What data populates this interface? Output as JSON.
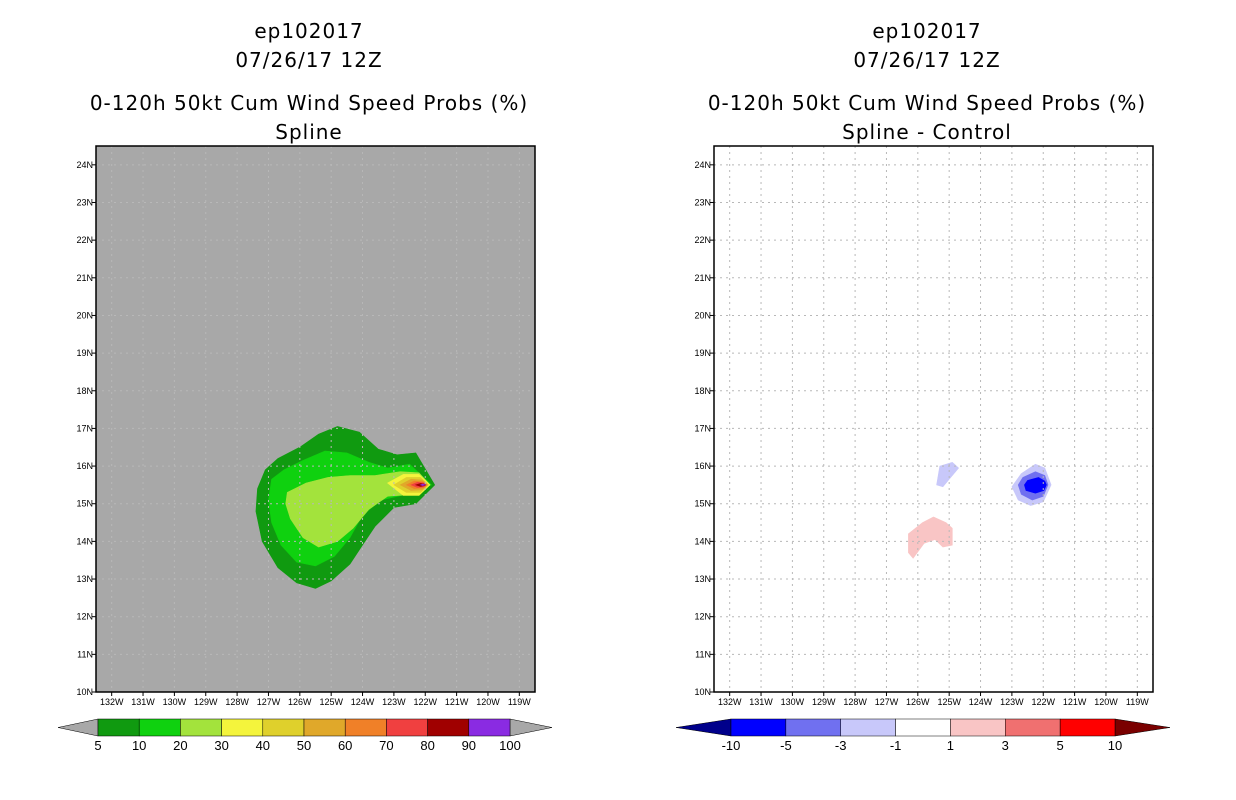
{
  "chart_data": [
    {
      "type": "heatmap",
      "storm_id": "ep102017",
      "date": "07/26/17 12Z",
      "title": "0-120h 50kt Cum Wind Speed Probs (%)",
      "subtitle": "Spline",
      "xlabel": "",
      "ylabel": "",
      "x_ticks": [
        "132W",
        "131W",
        "130W",
        "129W",
        "128W",
        "127W",
        "126W",
        "125W",
        "124W",
        "123W",
        "122W",
        "121W",
        "120W",
        "119W"
      ],
      "y_ticks": [
        "10N",
        "11N",
        "12N",
        "13N",
        "14N",
        "15N",
        "16N",
        "17N",
        "18N",
        "19N",
        "20N",
        "21N",
        "22N",
        "23N",
        "24N"
      ],
      "xlim": [
        -132.5,
        -118.5
      ],
      "ylim": [
        10,
        24.5
      ],
      "background": "#a8a8a8",
      "grid": true,
      "contours": [
        {
          "level": 5,
          "color": "#109a10",
          "points": [
            [
              -127.1,
              15.9
            ],
            [
              -126.7,
              16.2
            ],
            [
              -126.0,
              16.5
            ],
            [
              -125.4,
              16.85
            ],
            [
              -124.8,
              17.05
            ],
            [
              -124.1,
              16.9
            ],
            [
              -123.5,
              16.45
            ],
            [
              -122.9,
              16.3
            ],
            [
              -122.3,
              16.35
            ],
            [
              -121.7,
              15.5
            ],
            [
              -122.3,
              15.0
            ],
            [
              -123.0,
              14.9
            ],
            [
              -123.6,
              14.4
            ],
            [
              -124.0,
              13.9
            ],
            [
              -124.4,
              13.4
            ],
            [
              -125.0,
              12.95
            ],
            [
              -125.5,
              12.75
            ],
            [
              -126.1,
              12.9
            ],
            [
              -126.7,
              13.3
            ],
            [
              -127.2,
              14.0
            ],
            [
              -127.4,
              14.8
            ],
            [
              -127.35,
              15.4
            ]
          ]
        },
        {
          "level": 10,
          "color": "#0fd10f",
          "points": [
            [
              -126.9,
              15.65
            ],
            [
              -126.5,
              15.9
            ],
            [
              -125.9,
              16.15
            ],
            [
              -125.2,
              16.4
            ],
            [
              -124.5,
              16.35
            ],
            [
              -123.8,
              16.1
            ],
            [
              -123.2,
              15.95
            ],
            [
              -122.5,
              16.05
            ],
            [
              -121.8,
              15.5
            ],
            [
              -122.6,
              15.25
            ],
            [
              -123.4,
              15.1
            ],
            [
              -124.0,
              14.7
            ],
            [
              -124.4,
              14.1
            ],
            [
              -124.9,
              13.6
            ],
            [
              -125.5,
              13.35
            ],
            [
              -126.1,
              13.45
            ],
            [
              -126.6,
              13.9
            ],
            [
              -126.9,
              14.5
            ],
            [
              -127.0,
              15.1
            ]
          ]
        },
        {
          "level": 20,
          "color": "#a3e33c",
          "points": [
            [
              -126.4,
              15.3
            ],
            [
              -125.8,
              15.55
            ],
            [
              -125.1,
              15.7
            ],
            [
              -124.4,
              15.75
            ],
            [
              -123.6,
              15.75
            ],
            [
              -122.8,
              15.85
            ],
            [
              -122.2,
              15.82
            ],
            [
              -121.85,
              15.5
            ],
            [
              -122.3,
              15.25
            ],
            [
              -123.2,
              15.2
            ],
            [
              -123.8,
              14.85
            ],
            [
              -124.3,
              14.35
            ],
            [
              -124.8,
              14.0
            ],
            [
              -125.4,
              13.85
            ],
            [
              -125.9,
              14.1
            ],
            [
              -126.3,
              14.6
            ],
            [
              -126.45,
              15.0
            ]
          ]
        },
        {
          "level": 30,
          "color": "#f4f43c",
          "points": [
            [
              -123.2,
              15.55
            ],
            [
              -122.7,
              15.78
            ],
            [
              -122.2,
              15.78
            ],
            [
              -121.85,
              15.5
            ],
            [
              -122.2,
              15.22
            ],
            [
              -122.7,
              15.22
            ]
          ]
        },
        {
          "level": 40,
          "color": "#dfd02c",
          "points": [
            [
              -123.0,
              15.5
            ],
            [
              -122.6,
              15.7
            ],
            [
              -122.15,
              15.7
            ],
            [
              -121.9,
              15.5
            ],
            [
              -122.15,
              15.3
            ],
            [
              -122.6,
              15.3
            ]
          ]
        },
        {
          "level": 50,
          "color": "#e0a82a",
          "points": [
            [
              -122.8,
              15.5
            ],
            [
              -122.45,
              15.65
            ],
            [
              -122.1,
              15.63
            ],
            [
              -121.92,
              15.5
            ],
            [
              -122.1,
              15.37
            ],
            [
              -122.45,
              15.35
            ]
          ]
        },
        {
          "level": 60,
          "color": "#f08028",
          "points": [
            [
              -122.6,
              15.5
            ],
            [
              -122.35,
              15.6
            ],
            [
              -122.07,
              15.58
            ],
            [
              -121.95,
              15.5
            ],
            [
              -122.07,
              15.42
            ],
            [
              -122.35,
              15.4
            ]
          ]
        },
        {
          "level": 70,
          "color": "#f04040",
          "points": [
            [
              -122.45,
              15.5
            ],
            [
              -122.25,
              15.57
            ],
            [
              -122.05,
              15.55
            ],
            [
              -121.97,
              15.5
            ],
            [
              -122.05,
              15.45
            ],
            [
              -122.25,
              15.43
            ]
          ]
        },
        {
          "level": 80,
          "color": "#a00000",
          "points": [
            [
              -122.3,
              15.5
            ],
            [
              -122.15,
              15.54
            ],
            [
              -122.02,
              15.52
            ],
            [
              -121.99,
              15.5
            ],
            [
              -122.02,
              15.48
            ],
            [
              -122.15,
              15.46
            ]
          ]
        },
        {
          "level": 90,
          "color": "#8a2be2",
          "points": [
            [
              -122.15,
              15.5
            ],
            [
              -122.08,
              15.52
            ],
            [
              -122.0,
              15.5
            ],
            [
              -122.08,
              15.48
            ]
          ]
        }
      ],
      "colorbar": {
        "labels": [
          "5",
          "10",
          "20",
          "30",
          "40",
          "50",
          "60",
          "70",
          "80",
          "90",
          "100"
        ],
        "colors": [
          "#109a10",
          "#0fd10f",
          "#a3e33c",
          "#f4f43c",
          "#dfd02c",
          "#e0a82a",
          "#f08028",
          "#f04040",
          "#a00000",
          "#8a2be2"
        ],
        "lower_arrow_color": "#a8a8a8",
        "upper_arrow_color": "#a8a8a8",
        "label_position": "between-boxes"
      }
    },
    {
      "type": "heatmap",
      "storm_id": "ep102017",
      "date": "07/26/17 12Z",
      "title": "0-120h 50kt Cum Wind Speed Probs (%)",
      "subtitle": "Spline - Control",
      "xlabel": "",
      "ylabel": "",
      "x_ticks": [
        "132W",
        "131W",
        "130W",
        "129W",
        "128W",
        "127W",
        "126W",
        "125W",
        "124W",
        "123W",
        "122W",
        "121W",
        "120W",
        "119W"
      ],
      "y_ticks": [
        "10N",
        "11N",
        "12N",
        "13N",
        "14N",
        "15N",
        "16N",
        "17N",
        "18N",
        "19N",
        "20N",
        "21N",
        "22N",
        "23N",
        "24N"
      ],
      "xlim": [
        -132.5,
        -118.5
      ],
      "ylim": [
        10,
        24.5
      ],
      "background": "#ffffff",
      "grid": true,
      "contours": [
        {
          "level": -1,
          "color": "#c8c8fa",
          "points": [
            [
              -125.3,
              16.0
            ],
            [
              -124.9,
              16.1
            ],
            [
              -124.7,
              15.95
            ],
            [
              -125.0,
              15.65
            ],
            [
              -125.2,
              15.45
            ],
            [
              -125.4,
              15.5
            ]
          ]
        },
        {
          "level": -1,
          "color": "#c8c8fa",
          "points": [
            [
              -122.7,
              15.8
            ],
            [
              -122.25,
              16.05
            ],
            [
              -121.95,
              15.95
            ],
            [
              -121.75,
              15.5
            ],
            [
              -122.0,
              15.05
            ],
            [
              -122.4,
              14.95
            ],
            [
              -122.8,
              15.1
            ],
            [
              -123.0,
              15.45
            ]
          ]
        },
        {
          "level": -3,
          "color": "#7070f0",
          "points": [
            [
              -122.65,
              15.7
            ],
            [
              -122.25,
              15.85
            ],
            [
              -121.95,
              15.75
            ],
            [
              -121.85,
              15.5
            ],
            [
              -122.0,
              15.2
            ],
            [
              -122.35,
              15.1
            ],
            [
              -122.7,
              15.25
            ],
            [
              -122.8,
              15.5
            ]
          ]
        },
        {
          "level": -5,
          "color": "#0000ff",
          "points": [
            [
              -122.5,
              15.62
            ],
            [
              -122.15,
              15.7
            ],
            [
              -121.95,
              15.6
            ],
            [
              -121.9,
              15.5
            ],
            [
              -121.98,
              15.35
            ],
            [
              -122.25,
              15.28
            ],
            [
              -122.55,
              15.35
            ],
            [
              -122.6,
              15.5
            ]
          ]
        },
        {
          "level": 1,
          "color": "#f9c5c5",
          "points": [
            [
              -126.3,
              14.2
            ],
            [
              -125.85,
              14.5
            ],
            [
              -125.5,
              14.65
            ],
            [
              -125.1,
              14.5
            ],
            [
              -124.9,
              14.35
            ],
            [
              -124.9,
              13.9
            ],
            [
              -125.2,
              13.85
            ],
            [
              -125.45,
              14.05
            ],
            [
              -125.8,
              13.95
            ],
            [
              -126.15,
              13.55
            ],
            [
              -126.3,
              13.7
            ]
          ]
        }
      ],
      "colorbar": {
        "labels": [
          "-10",
          "-5",
          "-3",
          "-1",
          "1",
          "3",
          "5",
          "10"
        ],
        "colors": [
          "#0000ff",
          "#7070f0",
          "#c8c8fa",
          "#ffffff",
          "#f9c5c5",
          "#f07070",
          "#ff0000"
        ],
        "lower_arrow_color": "#00008b",
        "upper_arrow_color": "#7a0000",
        "label_position": "at-box-edges"
      }
    }
  ]
}
